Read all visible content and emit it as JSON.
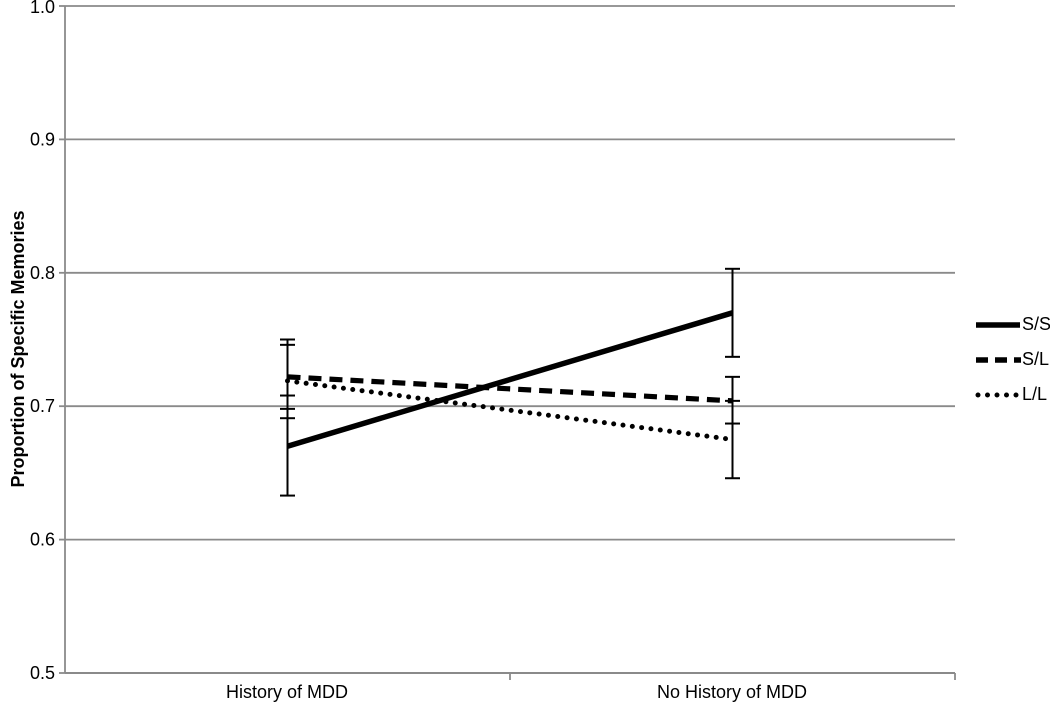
{
  "chart_data": {
    "type": "line",
    "title": "",
    "ylabel": "Proportion of Specific Memories",
    "xlabel": "",
    "categories": [
      "History of MDD",
      "No History of MDD"
    ],
    "ylim": [
      0.5,
      1.0
    ],
    "yticks": [
      1.0,
      0.9,
      0.8,
      0.7,
      0.6,
      0.5
    ],
    "ytick_labels": [
      "1.0",
      "0.9",
      "0.8",
      "0.7",
      "0.6",
      "0.5"
    ],
    "grid": "horizontal",
    "legend_position": "right",
    "series": [
      {
        "name": "S/S",
        "style": "solid",
        "values": [
          0.67,
          0.77
        ],
        "error_low": [
          0.633,
          0.737
        ],
        "error_high": [
          0.708,
          0.803
        ]
      },
      {
        "name": "S/L",
        "style": "dashed",
        "values": [
          0.722,
          0.704
        ],
        "error_low": [
          0.691,
          0.687
        ],
        "error_high": [
          0.75,
          0.722
        ]
      },
      {
        "name": "L/L",
        "style": "dotted",
        "values": [
          0.719,
          0.675
        ],
        "error_low": [
          0.698,
          0.646
        ],
        "error_high": [
          0.746,
          0.704
        ]
      }
    ],
    "colors": {
      "line": "#000000",
      "gridline": "#8a8a8a",
      "axis": "#8a8a8a",
      "text": "#000000"
    }
  }
}
